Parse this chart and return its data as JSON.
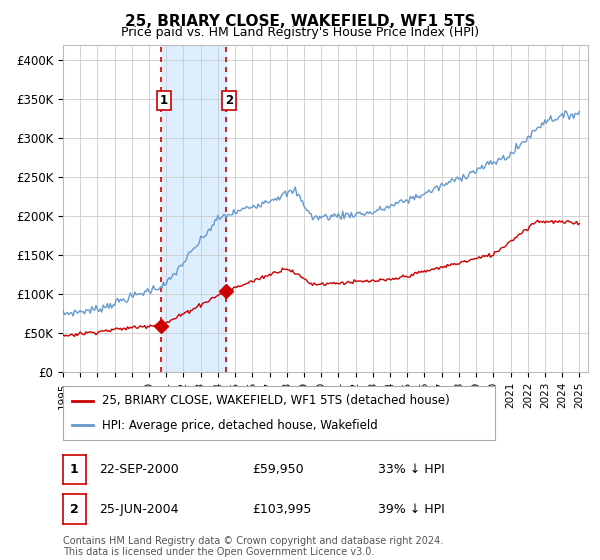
{
  "title": "25, BRIARY CLOSE, WAKEFIELD, WF1 5TS",
  "subtitle": "Price paid vs. HM Land Registry's House Price Index (HPI)",
  "hpi_label": "HPI: Average price, detached house, Wakefield",
  "property_label": "25, BRIARY CLOSE, WAKEFIELD, WF1 5TS (detached house)",
  "footer": "Contains HM Land Registry data © Crown copyright and database right 2024.\nThis data is licensed under the Open Government Licence v3.0.",
  "sale1": {
    "label": "1",
    "date": "22-SEP-2000",
    "price": "£59,950",
    "hpi": "33% ↓ HPI"
  },
  "sale2": {
    "label": "2",
    "date": "25-JUN-2004",
    "price": "£103,995",
    "hpi": "39% ↓ HPI"
  },
  "property_color": "#cc0000",
  "hpi_color": "#6699cc",
  "highlight_color": "#ddeeff",
  "vline_color": "#cc0000",
  "grid_color": "#cccccc",
  "background_color": "#ffffff",
  "ylim": [
    0,
    420000
  ],
  "yticks": [
    0,
    50000,
    100000,
    150000,
    200000,
    250000,
    300000,
    350000,
    400000
  ],
  "ytick_labels": [
    "£0",
    "£50K",
    "£100K",
    "£150K",
    "£200K",
    "£250K",
    "£300K",
    "£350K",
    "£400K"
  ],
  "sale1_x": 2000.72,
  "sale1_y": 59950,
  "sale2_x": 2004.48,
  "sale2_y": 103995,
  "vline1_x": 2000.72,
  "vline2_x": 2004.48,
  "highlight_x1": 2000.72,
  "highlight_x2": 2004.48,
  "xmin": 1995.0,
  "xmax": 2025.5
}
